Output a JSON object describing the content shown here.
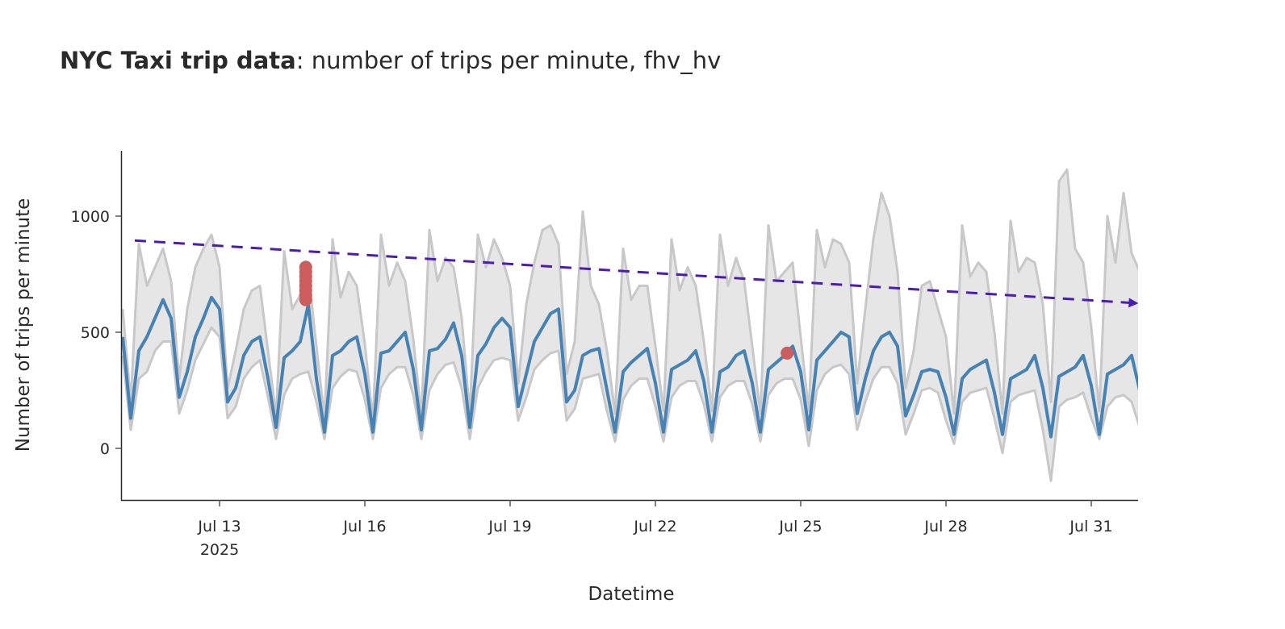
{
  "chart_data": {
    "type": "line",
    "title_bold": "NYC Taxi trip data",
    "title_rest": ": number of trips per minute, fhv_hv",
    "xlabel": "Datetime",
    "ylabel": "Number of trips per minute",
    "xlim": [
      "2025-07-11T00:00",
      "2025-08-01T00:00"
    ],
    "ylim": [
      -222,
      1281
    ],
    "y_ticks": [
      {
        "value": 0,
        "label": "0"
      },
      {
        "value": 500,
        "label": "500"
      },
      {
        "value": 1000,
        "label": "1000"
      }
    ],
    "x_ticks": [
      {
        "day_offset": 2,
        "label": "Jul 13",
        "sublabel": "2025"
      },
      {
        "day_offset": 5,
        "label": "Jul 16"
      },
      {
        "day_offset": 8,
        "label": "Jul 19"
      },
      {
        "day_offset": 11,
        "label": "Jul 22"
      },
      {
        "day_offset": 14,
        "label": "Jul 25"
      },
      {
        "day_offset": 17,
        "label": "Jul 28"
      },
      {
        "day_offset": 20,
        "label": "Jul 31"
      }
    ],
    "start": "2025-07-11T00:00",
    "step_hours": 4,
    "series": [
      {
        "name": "mean",
        "color": "#4682b4",
        "values": [
          480,
          130,
          420,
          480,
          560,
          640,
          560,
          220,
          330,
          480,
          560,
          650,
          600,
          200,
          260,
          400,
          460,
          480,
          300,
          90,
          390,
          420,
          460,
          620,
          300,
          70,
          400,
          420,
          460,
          480,
          320,
          70,
          410,
          420,
          460,
          500,
          340,
          80,
          420,
          430,
          470,
          540,
          400,
          90,
          400,
          450,
          520,
          560,
          520,
          180,
          320,
          460,
          520,
          580,
          600,
          200,
          250,
          400,
          420,
          430,
          250,
          70,
          330,
          370,
          400,
          430,
          280,
          70,
          340,
          360,
          380,
          420,
          290,
          70,
          330,
          350,
          400,
          420,
          280,
          70,
          340,
          370,
          400,
          440,
          330,
          80,
          380,
          420,
          460,
          500,
          480,
          150,
          300,
          420,
          480,
          500,
          440,
          140,
          230,
          330,
          340,
          330,
          220,
          60,
          300,
          340,
          360,
          380,
          240,
          60,
          300,
          320,
          340,
          400,
          260,
          50,
          310,
          330,
          350,
          400,
          270,
          60,
          320,
          340,
          360,
          400,
          250
        ]
      },
      {
        "name": "upper",
        "color": "#c8c8c8",
        "values": [
          600,
          200,
          880,
          700,
          780,
          860,
          720,
          300,
          600,
          780,
          860,
          920,
          780,
          260,
          420,
          600,
          680,
          700,
          420,
          140,
          850,
          600,
          660,
          760,
          440,
          130,
          900,
          650,
          760,
          700,
          450,
          120,
          920,
          700,
          800,
          720,
          470,
          140,
          940,
          720,
          820,
          780,
          560,
          150,
          920,
          780,
          900,
          820,
          700,
          280,
          620,
          800,
          940,
          960,
          880,
          320,
          460,
          1020,
          700,
          620,
          420,
          150,
          860,
          640,
          700,
          700,
          440,
          160,
          900,
          680,
          780,
          700,
          460,
          160,
          920,
          700,
          820,
          720,
          440,
          150,
          960,
          720,
          760,
          800,
          480,
          160,
          940,
          780,
          900,
          880,
          800,
          280,
          600,
          900,
          1100,
          1000,
          760,
          260,
          420,
          700,
          720,
          600,
          480,
          150,
          960,
          740,
          800,
          760,
          500,
          150,
          980,
          760,
          820,
          800,
          620,
          200,
          1150,
          1200,
          860,
          800,
          520,
          160,
          1000,
          800,
          1100,
          840,
          760
        ]
      },
      {
        "name": "lower",
        "color": "#c8c8c8",
        "values": [
          400,
          80,
          300,
          330,
          420,
          460,
          460,
          150,
          250,
          380,
          450,
          520,
          480,
          130,
          180,
          300,
          350,
          380,
          220,
          40,
          230,
          300,
          320,
          330,
          200,
          40,
          260,
          310,
          340,
          330,
          210,
          40,
          260,
          320,
          350,
          350,
          230,
          40,
          250,
          320,
          360,
          370,
          260,
          40,
          260,
          330,
          380,
          390,
          380,
          120,
          220,
          340,
          380,
          410,
          420,
          120,
          170,
          300,
          310,
          320,
          160,
          30,
          210,
          270,
          300,
          300,
          180,
          30,
          220,
          270,
          290,
          290,
          190,
          30,
          220,
          270,
          290,
          290,
          190,
          30,
          230,
          280,
          300,
          300,
          210,
          10,
          250,
          320,
          350,
          360,
          320,
          80,
          200,
          300,
          350,
          350,
          280,
          60,
          150,
          250,
          260,
          240,
          120,
          20,
          200,
          240,
          250,
          260,
          130,
          -20,
          200,
          230,
          240,
          250,
          80,
          -140,
          180,
          210,
          220,
          240,
          130,
          40,
          180,
          220,
          230,
          200,
          90
        ]
      }
    ],
    "band_fill": "#e6e6e6",
    "trend": {
      "color": "#4b1cb4",
      "start_day": 0.25,
      "start_value": 895,
      "end_day": 21,
      "end_value": 625
    },
    "anomalies": {
      "color": "#cd5c5c",
      "points": [
        {
          "day": 3.78,
          "value": 640
        },
        {
          "day": 3.78,
          "value": 660
        },
        {
          "day": 3.78,
          "value": 680
        },
        {
          "day": 3.78,
          "value": 700
        },
        {
          "day": 3.78,
          "value": 720
        },
        {
          "day": 3.78,
          "value": 740
        },
        {
          "day": 3.78,
          "value": 760
        },
        {
          "day": 3.78,
          "value": 780
        },
        {
          "day": 13.72,
          "value": 410
        }
      ]
    }
  }
}
